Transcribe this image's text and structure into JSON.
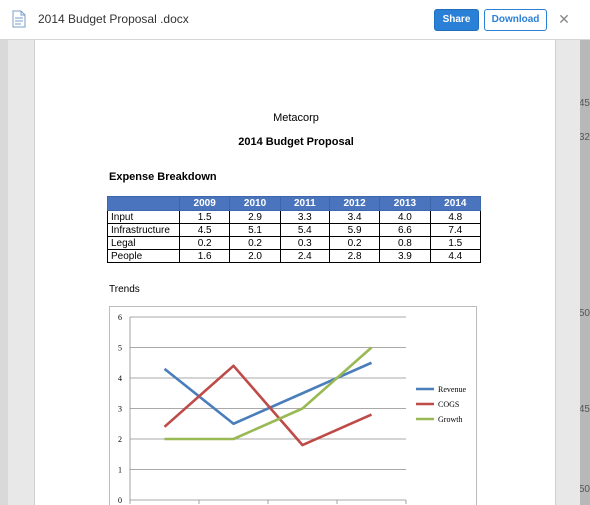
{
  "window": {
    "file_title": "2014 Budget Proposal .docx",
    "share_label": "Share",
    "download_label": "Download",
    "close_glyph": "✕"
  },
  "background": {
    "right_numbers": [
      "45",
      "32",
      "50",
      "45",
      "50"
    ]
  },
  "document": {
    "company": "Metacorp",
    "title": "2014 Budget Proposal",
    "section_heading": "Expense Breakdown",
    "trends_label": "Trends",
    "table": {
      "headers": [
        "",
        "2009",
        "2010",
        "2011",
        "2012",
        "2013",
        "2014"
      ],
      "rows": [
        {
          "label": "Input",
          "values": [
            "1.5",
            "2.9",
            "3.3",
            "3.4",
            "4.0",
            "4.8"
          ]
        },
        {
          "label": "Infrastructure",
          "values": [
            "4.5",
            "5.1",
            "5.4",
            "5.9",
            "6.6",
            "7.4"
          ]
        },
        {
          "label": "Legal",
          "values": [
            "0.2",
            "0.2",
            "0.3",
            "0.2",
            "0.8",
            "1.5"
          ]
        },
        {
          "label": "People",
          "values": [
            "1.6",
            "2.0",
            "2.4",
            "2.8",
            "3.9",
            "4.4"
          ]
        }
      ]
    }
  },
  "chart_data": {
    "type": "line",
    "x": [
      1,
      2,
      3,
      4
    ],
    "ylim": [
      0,
      6
    ],
    "yticks": [
      "0",
      "1",
      "2",
      "3",
      "4",
      "5",
      "6"
    ],
    "grid": true,
    "legend_position": "right",
    "series": [
      {
        "name": "Revenue",
        "color": "#4a7ebb",
        "values": [
          4.3,
          2.5,
          3.5,
          4.5
        ]
      },
      {
        "name": "COGS",
        "color": "#be4b48",
        "values": [
          2.4,
          4.4,
          1.8,
          2.8
        ]
      },
      {
        "name": "Growth",
        "color": "#98b954",
        "values": [
          2.0,
          2.0,
          3.0,
          5.0
        ]
      }
    ]
  }
}
